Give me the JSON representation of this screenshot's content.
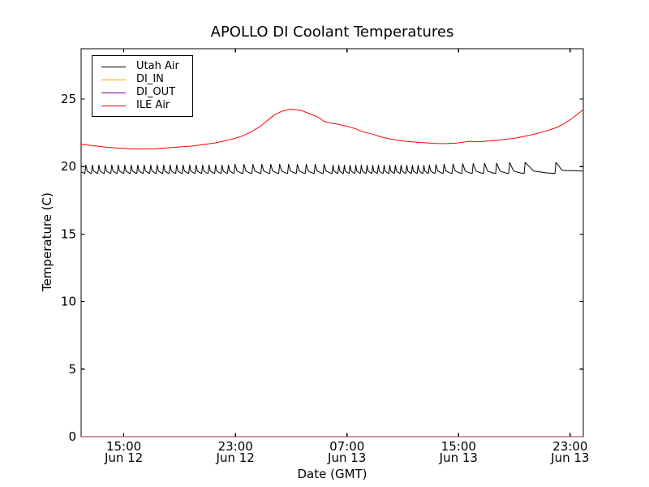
{
  "chart_data": {
    "type": "line",
    "title": "APOLLO DI Coolant Temperatures",
    "xlabel": "Date (GMT)",
    "ylabel": "Temperature (C)",
    "background_color": "#ffffff",
    "axis_color": "#000000",
    "grid": false,
    "legend_position": "upper left",
    "ylim": [
      0,
      28.73
    ],
    "y_ticks": [
      0,
      5,
      10,
      15,
      20,
      25
    ],
    "xlim_hours": [
      0,
      36
    ],
    "x_ticks": [
      {
        "h": 3.06,
        "time": "15:00",
        "date": "Jun 12"
      },
      {
        "h": 11.06,
        "time": "23:00",
        "date": "Jun 12"
      },
      {
        "h": 19.06,
        "time": "07:00",
        "date": "Jun 13"
      },
      {
        "h": 27.06,
        "time": "15:00",
        "date": "Jun 13"
      },
      {
        "h": 35.06,
        "time": "23:00",
        "date": "Jun 13"
      }
    ],
    "series": [
      {
        "name": "Utah Air",
        "color": "#000000",
        "shape": "sawtooth",
        "baseline": 19.47,
        "peak_base": 19.98,
        "peak_gap_scale": 0.3,
        "peak_max_add": 0.33,
        "start_value": 19.6,
        "end_value": 19.67,
        "spikes": [
          0.29,
          0.76,
          1.22,
          1.68,
          2.15,
          2.61,
          3.08,
          3.54,
          4.01,
          4.47,
          4.94,
          5.4,
          5.87,
          6.33,
          6.8,
          7.26,
          7.73,
          8.19,
          8.66,
          9.12,
          9.59,
          10.05,
          10.51,
          10.98,
          11.62,
          12.26,
          12.9,
          13.54,
          14.18,
          14.82,
          15.45,
          16.09,
          16.73,
          17.37,
          18.01,
          18.42,
          18.82,
          19.23,
          19.64,
          20.04,
          20.45,
          20.86,
          21.26,
          21.67,
          22.08,
          22.48,
          22.89,
          23.3,
          23.7,
          24.11,
          24.52,
          24.92,
          25.39,
          25.97,
          26.61,
          27.31,
          28.06,
          28.87,
          29.74,
          30.67,
          31.78,
          33.99
        ]
      },
      {
        "name": "DI_IN",
        "color": "#ffa500",
        "shape": "constant",
        "value": 0,
        "opacity": 1
      },
      {
        "name": "DI_OUT",
        "color": "#800080",
        "shape": "constant",
        "value": 0,
        "opacity": 0.75
      },
      {
        "name": "ILE Air",
        "color": "#ff0000",
        "shape": "points",
        "points": [
          [
            0,
            21.65
          ],
          [
            0.9,
            21.55
          ],
          [
            1.7,
            21.45
          ],
          [
            2.6,
            21.37
          ],
          [
            3.5,
            21.32
          ],
          [
            4.4,
            21.3
          ],
          [
            5.2,
            21.32
          ],
          [
            6.1,
            21.38
          ],
          [
            7.0,
            21.45
          ],
          [
            7.9,
            21.52
          ],
          [
            8.7,
            21.62
          ],
          [
            9.6,
            21.75
          ],
          [
            10.5,
            21.95
          ],
          [
            11.0,
            22.08
          ],
          [
            11.6,
            22.28
          ],
          [
            12.2,
            22.58
          ],
          [
            12.8,
            22.95
          ],
          [
            13.4,
            23.45
          ],
          [
            13.9,
            23.85
          ],
          [
            14.4,
            24.1
          ],
          [
            15.0,
            24.25
          ],
          [
            15.5,
            24.2
          ],
          [
            15.8,
            24.15
          ],
          [
            16.3,
            23.95
          ],
          [
            16.8,
            23.75
          ],
          [
            17.1,
            23.6
          ],
          [
            17.4,
            23.35
          ],
          [
            17.8,
            23.25
          ],
          [
            18.3,
            23.15
          ],
          [
            18.8,
            23.05
          ],
          [
            19.2,
            22.95
          ],
          [
            19.7,
            22.8
          ],
          [
            20.0,
            22.65
          ],
          [
            20.5,
            22.5
          ],
          [
            20.9,
            22.4
          ],
          [
            21.5,
            22.2
          ],
          [
            22.1,
            22.05
          ],
          [
            22.7,
            21.95
          ],
          [
            23.2,
            21.88
          ],
          [
            24.4,
            21.78
          ],
          [
            25.3,
            21.72
          ],
          [
            25.9,
            21.7
          ],
          [
            26.6,
            21.72
          ],
          [
            27.0,
            21.75
          ],
          [
            27.9,
            21.88
          ],
          [
            28.3,
            21.84
          ],
          [
            28.8,
            21.86
          ],
          [
            29.9,
            21.95
          ],
          [
            31.1,
            22.1
          ],
          [
            32.2,
            22.33
          ],
          [
            33.4,
            22.65
          ],
          [
            34.1,
            22.9
          ],
          [
            34.6,
            23.15
          ],
          [
            35.1,
            23.5
          ],
          [
            35.5,
            23.8
          ],
          [
            35.96,
            24.2
          ]
        ]
      }
    ]
  }
}
